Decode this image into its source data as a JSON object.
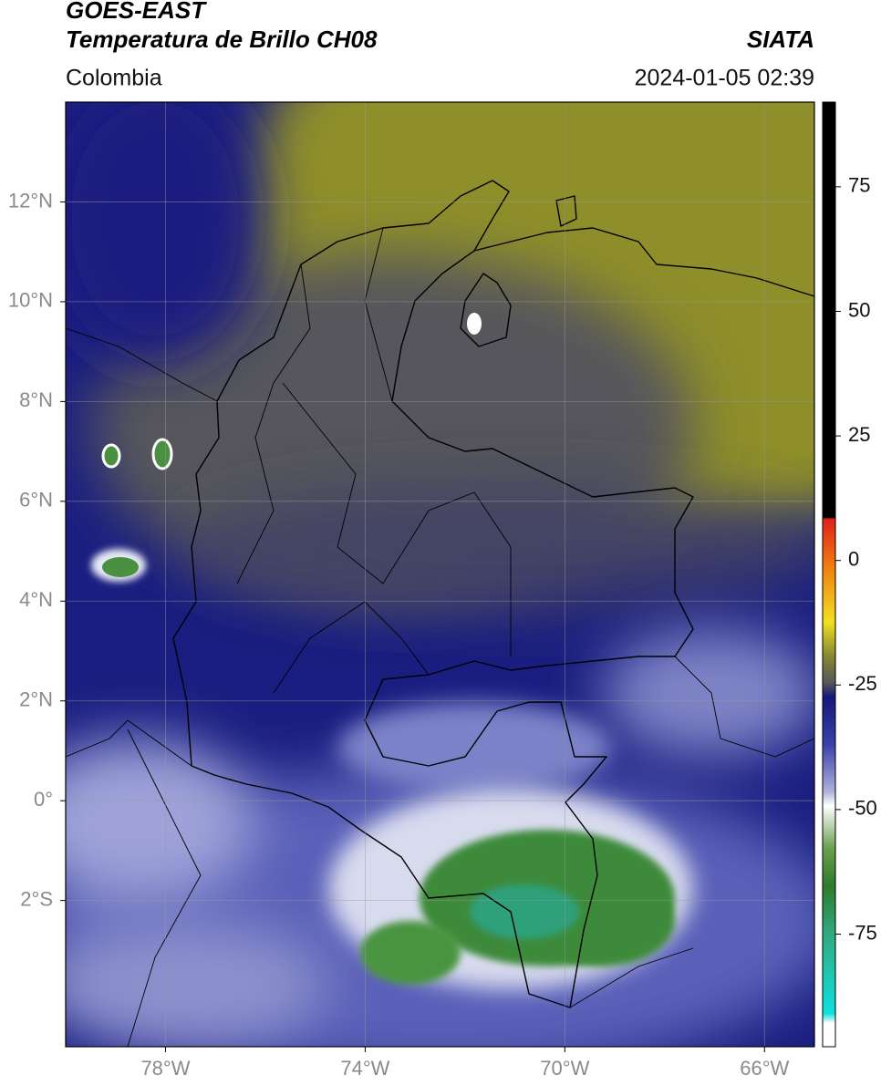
{
  "header": {
    "title": "GOES-EAST",
    "subtitle": "Temperatura de Brillo CH08",
    "source": "SIATA",
    "region": "Colombia",
    "datetime": "2024-01-05 02:39"
  },
  "map": {
    "xlim": [
      -80,
      -65
    ],
    "ylim": [
      -4.93,
      14
    ],
    "xticks": [
      {
        "value": -78,
        "label": "78°W"
      },
      {
        "value": -74,
        "label": "74°W"
      },
      {
        "value": -70,
        "label": "70°W"
      },
      {
        "value": -66,
        "label": "66°W"
      }
    ],
    "yticks": [
      {
        "value": 12,
        "label": "12°N"
      },
      {
        "value": 10,
        "label": "10°N"
      },
      {
        "value": 8,
        "label": "8°N"
      },
      {
        "value": 6,
        "label": "6°N"
      },
      {
        "value": 4,
        "label": "4°N"
      },
      {
        "value": 2,
        "label": "2°N"
      },
      {
        "value": 0,
        "label": "0°"
      },
      {
        "value": -2,
        "label": "2°S"
      }
    ]
  },
  "colorbar": {
    "lim": [
      -97.6,
      92
    ],
    "ticks": [
      75,
      50,
      25,
      0,
      -25,
      -50,
      -75
    ]
  }
}
